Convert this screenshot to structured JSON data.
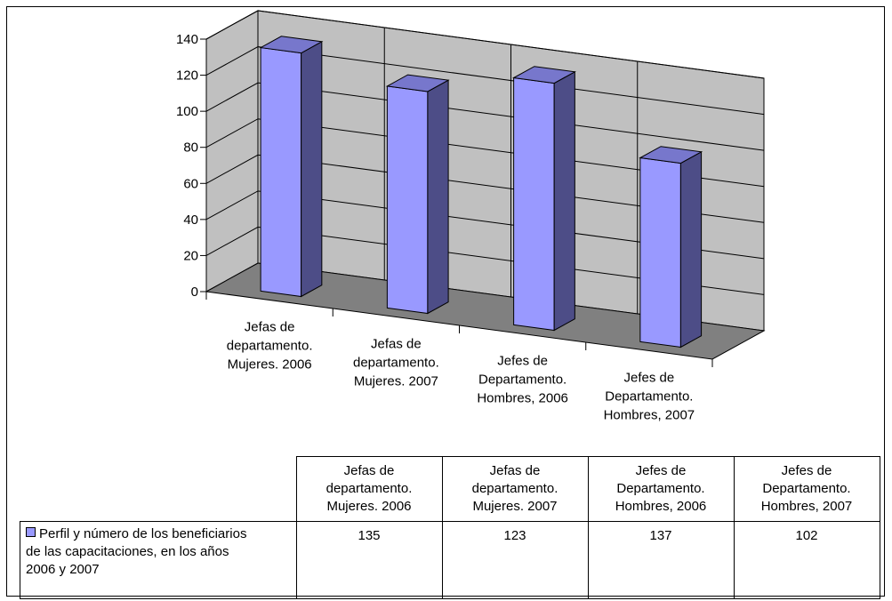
{
  "chart_data": {
    "type": "bar",
    "style": "3d-column",
    "categories": [
      "Jefas de departamento. Mujeres. 2006",
      "Jefas de departamento. Mujeres. 2007",
      "Jefes de Departamento. Hombres, 2006",
      "Jefes de Departamento. Hombres, 2007"
    ],
    "category_label_lines": [
      [
        "Jefas de",
        "departamento.",
        "Mujeres. 2006"
      ],
      [
        "Jefas de",
        "departamento.",
        "Mujeres. 2007"
      ],
      [
        "Jefes de",
        "Departamento.",
        "Hombres, 2006"
      ],
      [
        "Jefes de",
        "Departamento.",
        "Hombres, 2007"
      ]
    ],
    "series": [
      {
        "name": "Perfil y número de los beneficiarios de las capacitaciones, en los años 2006 y 2007",
        "values": [
          135,
          123,
          137,
          102
        ]
      }
    ],
    "yticks": [
      "0",
      "20",
      "40",
      "60",
      "80",
      "100",
      "120",
      "140"
    ],
    "ylim": [
      0,
      140
    ],
    "grid": true,
    "legend": "data-table",
    "colors": {
      "bar_front": "#9999ff",
      "bar_side": "#4d4d87",
      "bar_top": "#7777cc",
      "wall": "#c0c0c0",
      "floor": "#808080"
    }
  },
  "table": {
    "headers": [
      [
        "Jefas de",
        "departamento.",
        "Mujeres. 2006"
      ],
      [
        "Jefas de",
        "departamento.",
        "Mujeres. 2007"
      ],
      [
        "Jefes de",
        "Departamento.",
        "Hombres, 2006"
      ],
      [
        "Jefes de",
        "Departamento.",
        "Hombres, 2007"
      ]
    ],
    "series_label_lines": [
      "Perfil y número de los beneficiarios",
      "de las capacitaciones, en los años",
      "2006 y 2007"
    ],
    "values": [
      "135",
      "123",
      "137",
      "102"
    ]
  }
}
